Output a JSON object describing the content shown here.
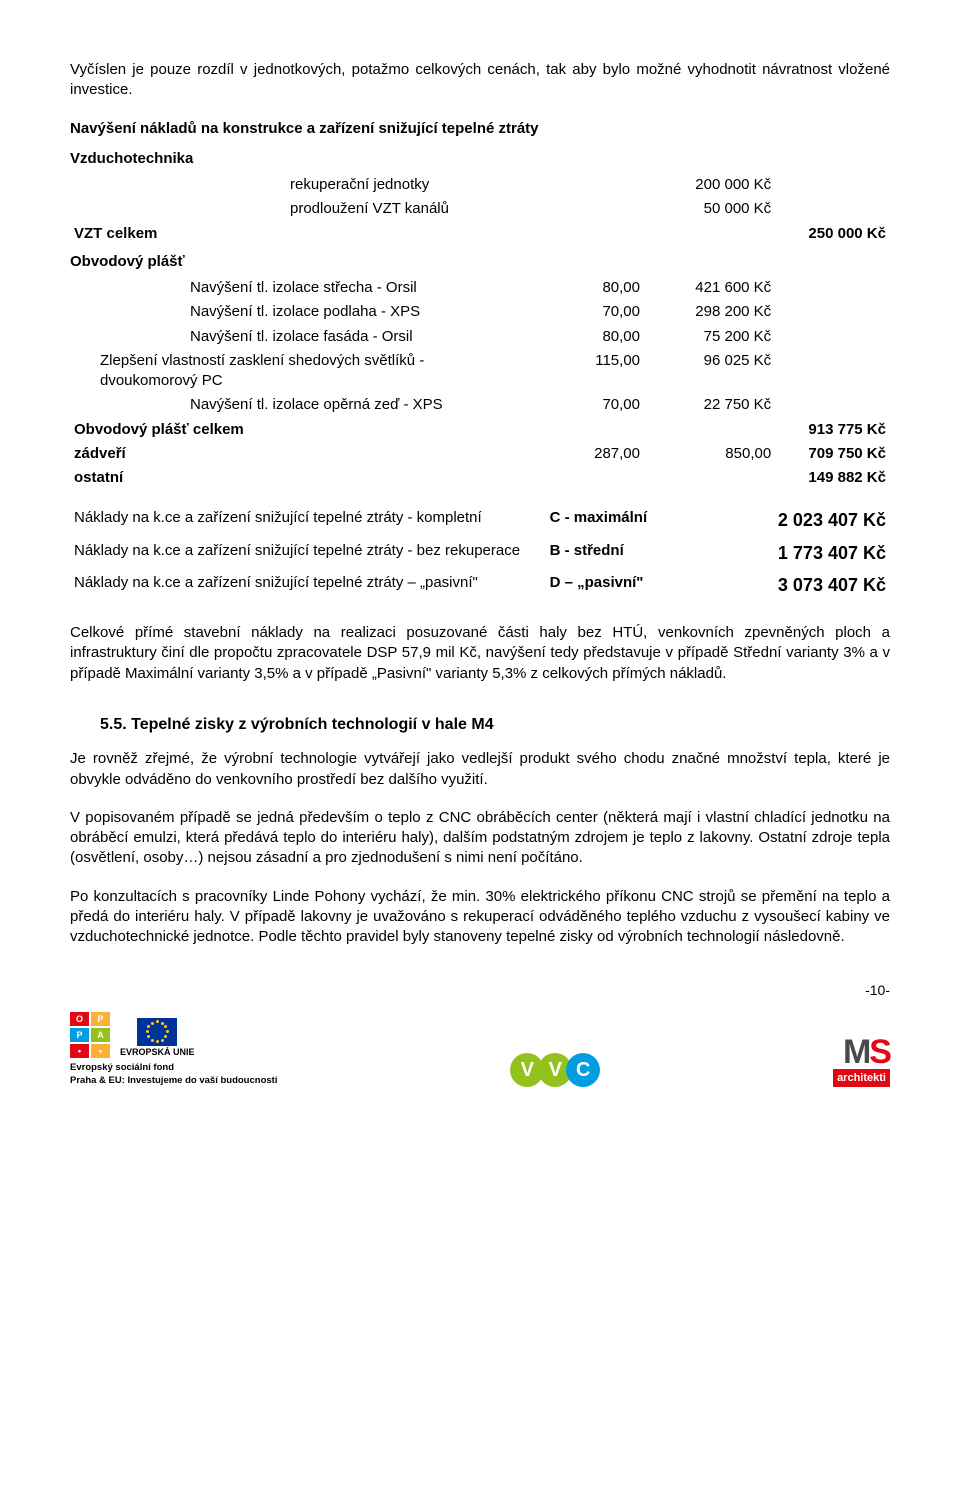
{
  "intro_para": "Vyčíslen je pouze rozdíl v jednotkových, potažmo celkových cenách, tak aby bylo možné vyhodnotit návratnost vložené investice.",
  "heading1": "Navýšení nákladů na konstrukce a zařízení snižující tepelné ztráty",
  "vzducho_label": "Vzduchotechnika",
  "vzt_rows": [
    {
      "label": "rekuperační jednotky",
      "val": "200 000 Kč"
    },
    {
      "label": "prodloužení VZT kanálů",
      "val": "50 000 Kč"
    }
  ],
  "vzt_total": {
    "label": "VZT celkem",
    "val": "250 000 Kč"
  },
  "obv_label": "Obvodový plášť",
  "obv_rows": [
    {
      "label": "Navýšení tl. izolace střecha - Orsil",
      "n1": "80,00",
      "n2": "421 600 Kč"
    },
    {
      "label": "Navýšení tl. izolace podlaha - XPS",
      "n1": "70,00",
      "n2": "298 200 Kč"
    },
    {
      "label": "Navýšení tl. izolace fasáda - Orsil",
      "n1": "80,00",
      "n2": "75 200 Kč"
    },
    {
      "label": "Zlepšení vlastností zasklení shedových světlíků - dvoukomorový PC",
      "n1": "115,00",
      "n2": "96 025 Kč"
    },
    {
      "label": "Navýšení tl. izolace opěrná zeď - XPS",
      "n1": "70,00",
      "n2": "22 750 Kč"
    }
  ],
  "obv_total": {
    "label": "Obvodový plášť celkem",
    "val": "913 775 Kč"
  },
  "zadveri": {
    "label": "zádveří",
    "n1": "287,00",
    "n2": "850,00",
    "val": "709 750 Kč"
  },
  "ostatni": {
    "label": "ostatní",
    "val": "149 882 Kč"
  },
  "summary": [
    {
      "label": "Náklady na k.ce a zařízení snižující tepelné ztráty - kompletní",
      "mid": "C - maximální",
      "val": "2 023 407 Kč"
    },
    {
      "label": "Náklady na k.ce a zařízení snižující tepelné ztráty - bez rekuperace",
      "mid": "B - střední",
      "val": "1 773 407 Kč"
    },
    {
      "label": "Náklady na k.ce a zařízení snižující tepelné ztráty – „pasivní\"",
      "mid": "D – „pasivní\"",
      "val": "3 073 407 Kč"
    }
  ],
  "body_para": "Celkové přímé stavební náklady na realizaci posuzované části haly bez HTÚ, venkovních zpevněných ploch a infrastruktury činí dle propočtu zpracovatele DSP 57,9 mil Kč, navýšení tedy představuje v případě Střední varianty 3% a v případě Maximální varianty 3,5%  a v případě „Pasivní\" varianty 5,3% z celkových přímých nákladů.",
  "h55": "5.5. Tepelné zisky z výrobních technologií v hale M4",
  "para55a": "Je rovněž zřejmé, že výrobní technologie vytvářejí jako vedlejší produkt svého chodu značné množství tepla, které je obvykle odváděno do venkovního prostředí bez dalšího využití.",
  "para55b": "V popisovaném případě se jedná především o teplo z CNC obráběcích center (některá mají i vlastní chladící jednotku na obráběcí emulzi, která předává teplo do interiéru haly), dalším podstatným zdrojem je teplo z lakovny. Ostatní zdroje tepla (osvětlení, osoby…) nejsou zásadní a pro zjednodušení s nimi není počítáno.",
  "para55c": "Po konzultacích s pracovníky Linde Pohony vychází, že min. 30% elektrického příkonu CNC strojů se přemění na teplo a předá do interiéru haly. V případě lakovny je uvažováno s rekuperací odváděného teplého vzduchu z vysoušecí kabiny ve vzduchotechnické jednotce. Podle těchto pravidel byly stanoveny tepelné zisky od výrobních technologií následovně.",
  "oppa": {
    "cells": [
      "O",
      "P",
      "P",
      "A",
      "•",
      "•"
    ],
    "colors": [
      "#e30613",
      "#f9b233",
      "#009ee0",
      "#95c11f",
      "#e30613",
      "#f9b233"
    ],
    "eu_text": "EVROPSKÁ UNIE",
    "caption": "Evropský sociální fond\nPraha & EU: Investujeme do vaší budoucnosti"
  },
  "vvc_colors": [
    "#95c11f",
    "#95c11f",
    "#009ee0"
  ],
  "vvc_letters": [
    "V",
    "V",
    "C"
  ],
  "ms": {
    "top": "MS",
    "bottom": "architekti",
    "top_colors": [
      "#4a4a4a",
      "#e30613"
    ]
  },
  "page_num": "-10-"
}
